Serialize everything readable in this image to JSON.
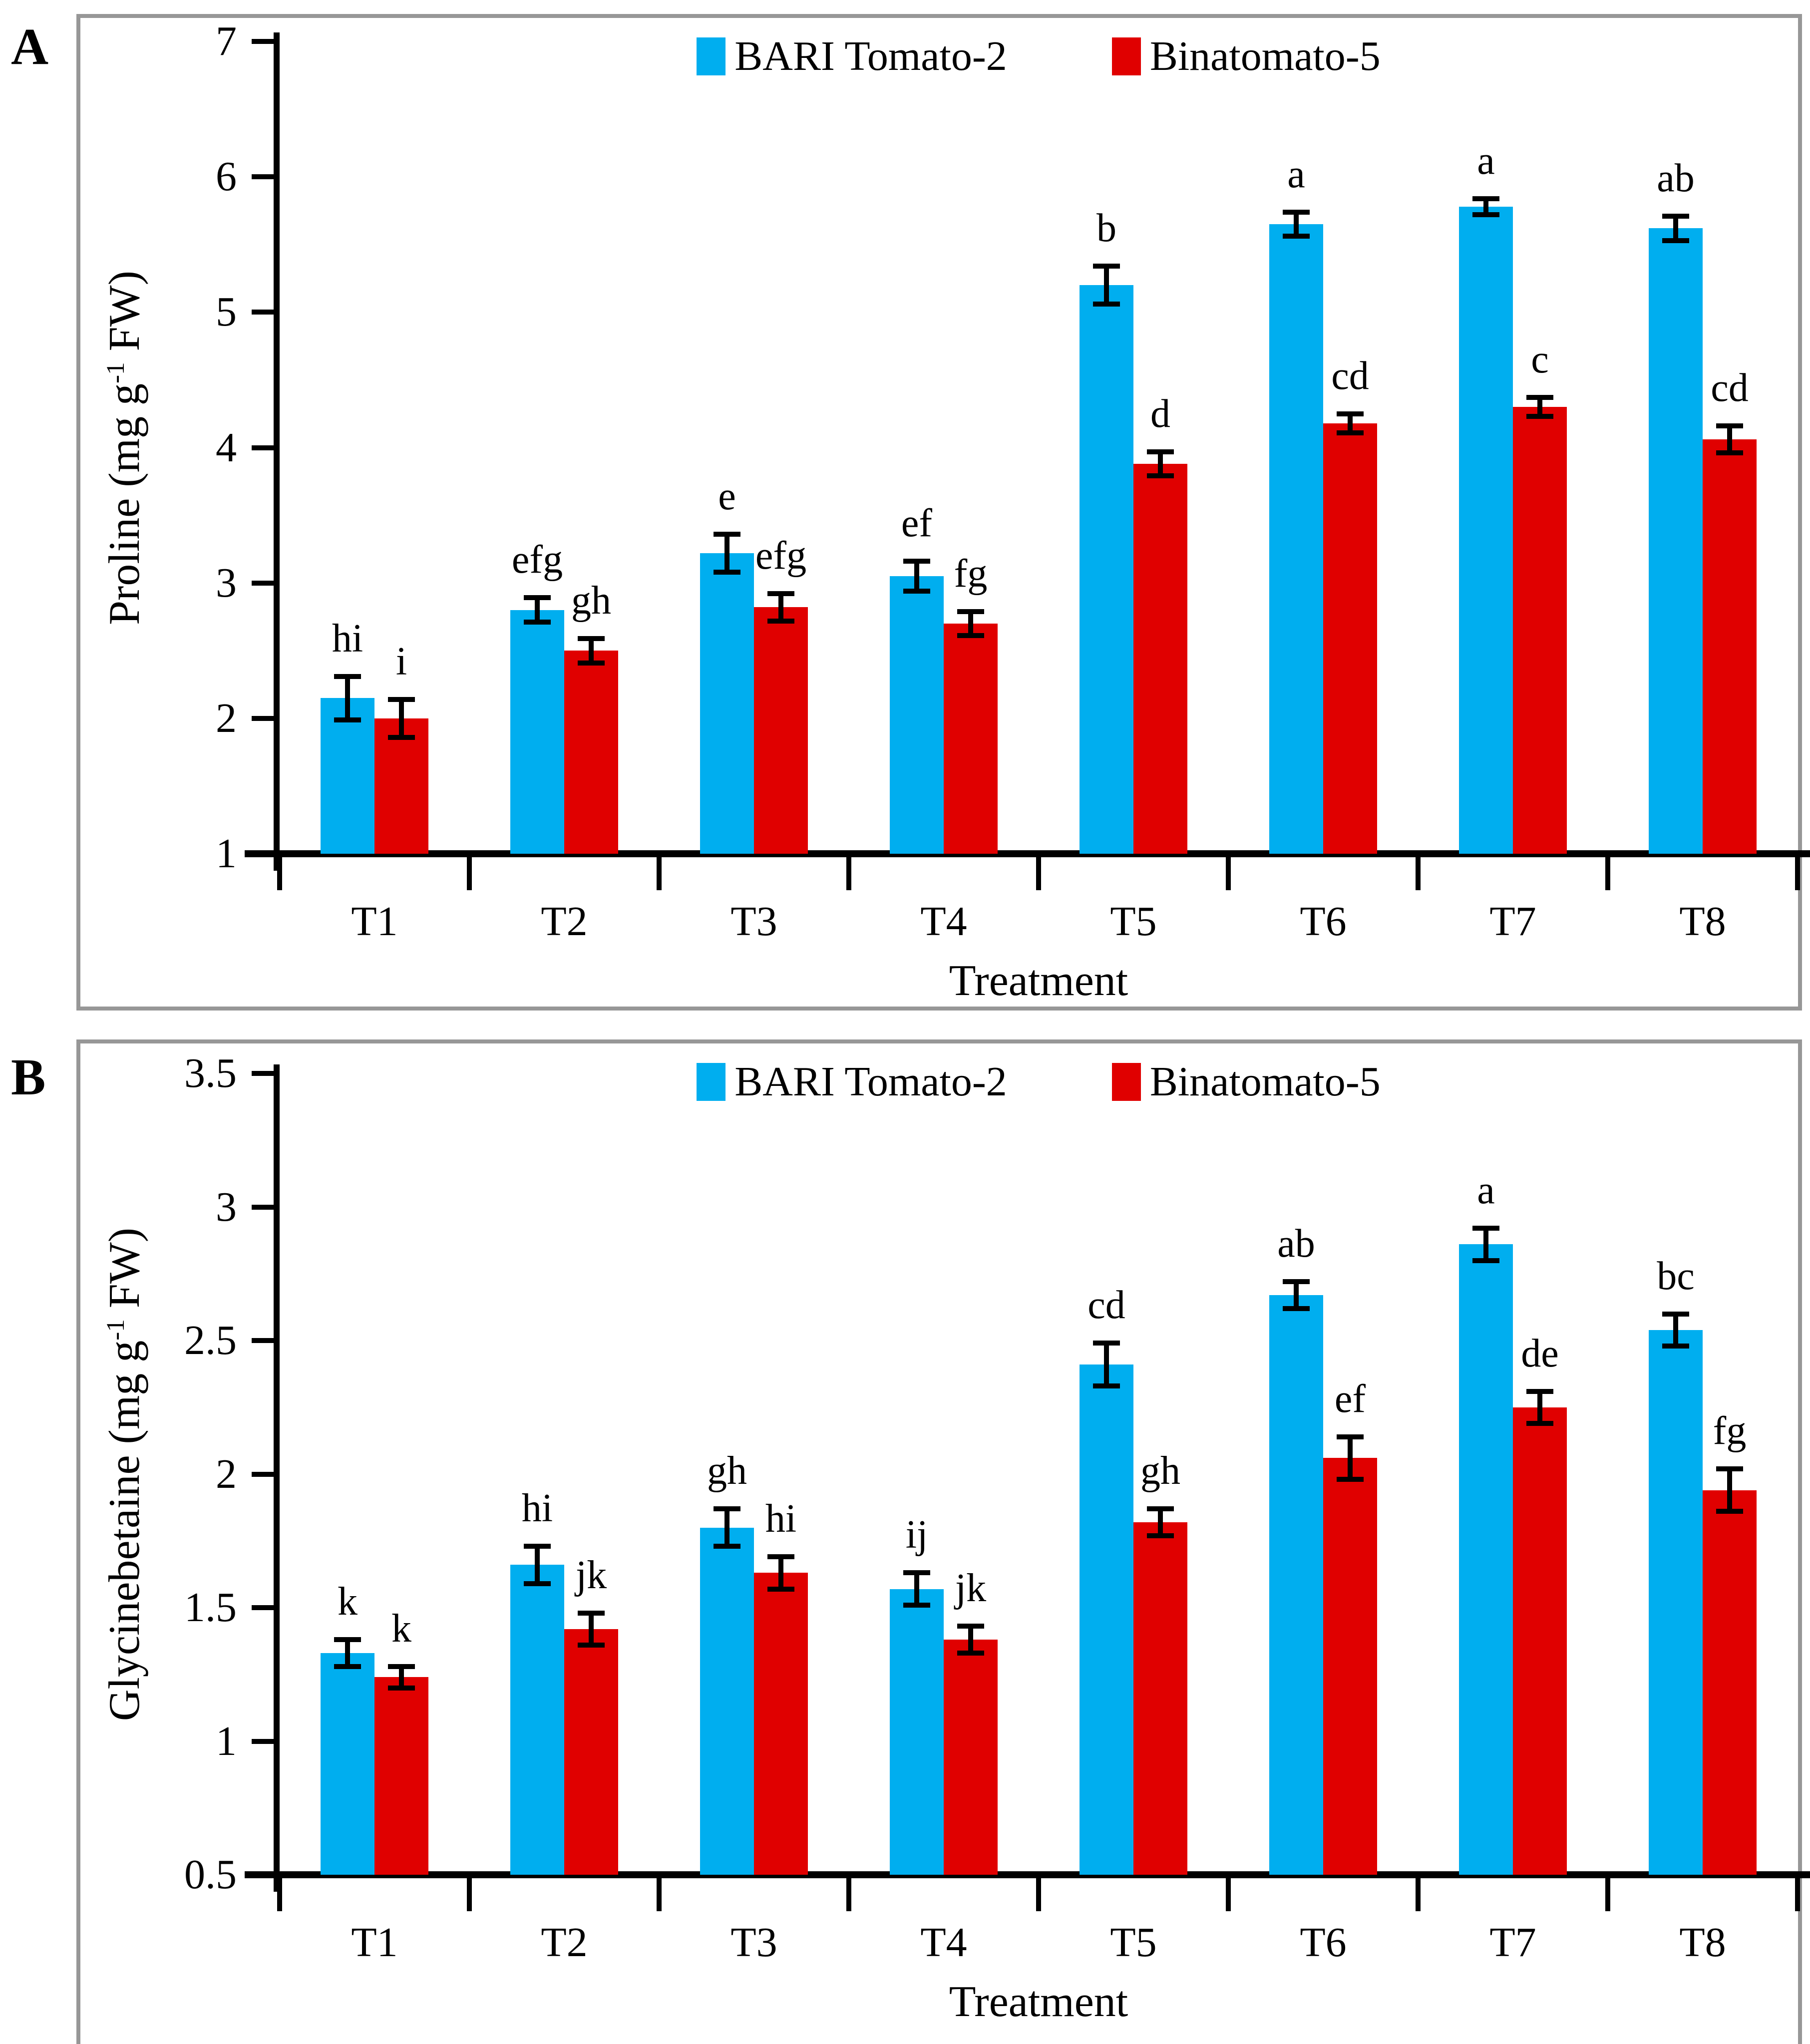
{
  "figure": {
    "background": "#ffffff",
    "panel_border_color": "#979797",
    "axis_color": "#000000",
    "text_color": "#000000"
  },
  "chart_data": [
    {
      "type": "bar",
      "panel_label": "A",
      "title": "",
      "xlabel": "Treatment",
      "ylabel": "Proline (mg g-1 FW)",
      "ylabel_parts": {
        "pre": "Proline (mg g",
        "sup": "-1",
        "post": " FW)"
      },
      "categories": [
        "T1",
        "T2",
        "T3",
        "T4",
        "T5",
        "T6",
        "T7",
        "T8"
      ],
      "ylim": [
        1,
        7
      ],
      "yticks": [
        {
          "v": 1,
          "label": "1"
        },
        {
          "v": 2,
          "label": "2"
        },
        {
          "v": 3,
          "label": "3"
        },
        {
          "v": 4,
          "label": "4"
        },
        {
          "v": 5,
          "label": "5"
        },
        {
          "v": 6,
          "label": "6"
        },
        {
          "v": 7,
          "label": "7"
        }
      ],
      "grid": false,
      "legend_position": "top-center",
      "series": [
        {
          "name": "BARI Tomato-2",
          "color": "#00AEEF",
          "values": [
            2.15,
            2.8,
            3.22,
            3.05,
            5.2,
            5.65,
            5.78,
            5.62
          ],
          "errors": [
            0.16,
            0.09,
            0.14,
            0.11,
            0.14,
            0.09,
            0.06,
            0.09
          ],
          "letters": [
            "hi",
            "efg",
            "e",
            "ef",
            "b",
            "a",
            "a",
            "ab"
          ]
        },
        {
          "name": "Binatomato-5",
          "color": "#E00000",
          "values": [
            2.0,
            2.5,
            2.82,
            2.7,
            3.88,
            4.18,
            4.3,
            4.06
          ],
          "errors": [
            0.14,
            0.09,
            0.1,
            0.09,
            0.09,
            0.07,
            0.07,
            0.1
          ],
          "letters": [
            "i",
            "gh",
            "efg",
            "fg",
            "d",
            "cd",
            "c",
            "cd"
          ]
        }
      ]
    },
    {
      "type": "bar",
      "panel_label": "B",
      "title": "",
      "xlabel": "Treatment",
      "ylabel": "Glycinebetaine (mg g-1 FW)",
      "ylabel_parts": {
        "pre": "Glycinebetaine (mg g",
        "sup": "-1",
        "post": " FW)"
      },
      "categories": [
        "T1",
        "T2",
        "T3",
        "T4",
        "T5",
        "T6",
        "T7",
        "T8"
      ],
      "ylim": [
        0.5,
        3.5
      ],
      "yticks": [
        {
          "v": 0.5,
          "label": "0.5"
        },
        {
          "v": 1,
          "label": "1"
        },
        {
          "v": 1.5,
          "label": "1.5"
        },
        {
          "v": 2,
          "label": "2"
        },
        {
          "v": 2.5,
          "label": "2.5"
        },
        {
          "v": 3,
          "label": "3"
        },
        {
          "v": 3.5,
          "label": "3.5"
        }
      ],
      "grid": false,
      "legend_position": "top-center",
      "series": [
        {
          "name": "BARI Tomato-2",
          "color": "#00AEEF",
          "values": [
            1.33,
            1.66,
            1.8,
            1.57,
            2.41,
            2.67,
            2.86,
            2.54
          ],
          "errors": [
            0.05,
            0.07,
            0.07,
            0.06,
            0.08,
            0.05,
            0.06,
            0.06
          ],
          "letters": [
            "k",
            "hi",
            "gh",
            "ij",
            "cd",
            "ab",
            "a",
            "bc"
          ]
        },
        {
          "name": "Binatomato-5",
          "color": "#E00000",
          "values": [
            1.24,
            1.42,
            1.63,
            1.38,
            1.82,
            2.06,
            2.25,
            1.94
          ],
          "errors": [
            0.04,
            0.06,
            0.06,
            0.05,
            0.05,
            0.08,
            0.06,
            0.08
          ],
          "letters": [
            "k",
            "jk",
            "hi",
            "jk",
            "gh",
            "ef",
            "de",
            "fg"
          ]
        }
      ]
    }
  ]
}
